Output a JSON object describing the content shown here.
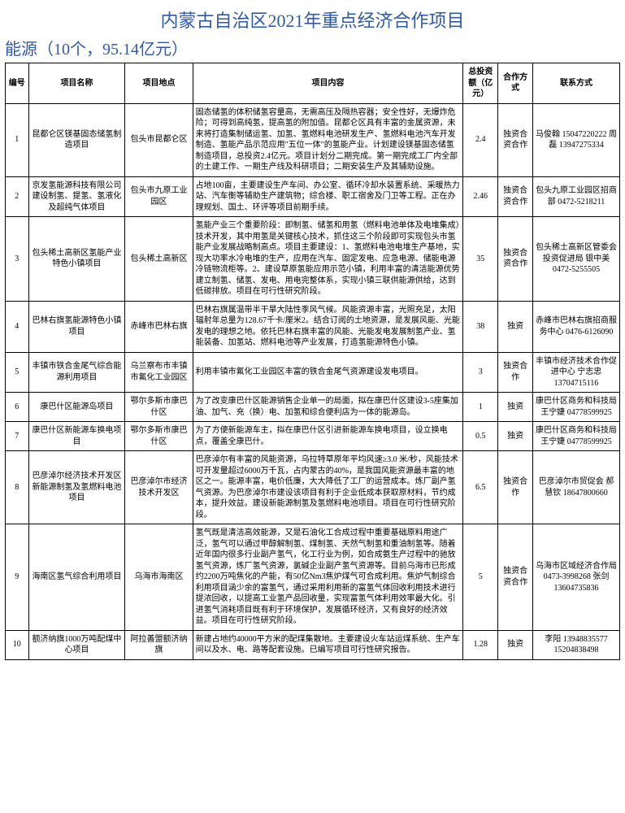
{
  "title": "内蒙古自治区2021年重点经济合作项目",
  "subtitle": "能源（10个，95.14亿元）",
  "headers": {
    "h0": "编号",
    "h1": "项目名称",
    "h2": "项目地点",
    "h3": "项目内容",
    "h4": "总投资额（亿元）",
    "h5": "合作方式",
    "h6": "联系方式"
  },
  "rows": [
    {
      "id": "1",
      "name": "昆都仑区镁基固态储氢制造项目",
      "loc": "包头市昆都仑区",
      "content": "固态储氢的体积储氢容量高，无需高压及隔热容器；安全性好，无爆炸危险；可得到高纯氢，提高氢的附加值。昆都仑区具有丰富的金属资源，未来将打造集制储运氢、加氢、氢燃料电池研发生产、氢燃料电池汽车开发制造、氢能产品示范应用\"五位一体\"的氢能产业。计划建设镁基固态储氢制造项目，总投资2.4亿元。项目计划分二期完成。第一期完成工厂内全部的土建工作、一期生产线及科研项目；二期安装生产及其辅助设施。",
      "inv": "2.4",
      "coop": "独资合资合作",
      "contact": "马俊翰 15047220222 周磊 13947275334"
    },
    {
      "id": "2",
      "name": "京发氢能源科技有限公司建设制氢、提氢、氢液化及超纯气体项目",
      "loc": "包头市九原工业园区",
      "content": "占地100亩，主要建设生产车间、办公室、循环冷却水装置系统、采暖热力站、汽车衡等辅助生产建筑物；综合楼、职工宿舍及门卫等工程。正在办理规划、国土、环评等项目前期手续。",
      "inv": "2.46",
      "coop": "独资合资合作",
      "contact": "包头九原工业园区招商部 0472-5218211"
    },
    {
      "id": "3",
      "name": "包头稀土高新区氢能产业特色小镇项目",
      "loc": "包头稀土高新区",
      "content": "氢能产业三个重要阶段：即制氢、储氢和用氢（燃料电池单体及电堆集成）技术开发，其中用氢是关键核心技术，抓住这三个阶段即可实现包头市氢能产业发展战略制高点。项目主要建设：1、氢燃料电池电堆生产基地，实现大功率水冷电堆的生产，应用在汽车、固定发电、应急电源、储能电源冷链物流柜等。2、建设草原氢能应用示范小镇，利用丰富的清洁能源优势建立制氢、储氢、发电、用电完整体系，实现小镇三联供能源供给，达到低碳排放。项目在可行性研究阶段。",
      "inv": "35",
      "coop": "独资合资合作",
      "contact": "包头稀土高新区管委会投资促进局 银中美 0472-5255505"
    },
    {
      "id": "4",
      "name": "巴林右旗氢能源特色小镇项目",
      "loc": "赤峰市巴林右旗",
      "content": "巴林右旗属温带半干旱大陆性季风气候。风能资源丰富，光照充足，太阳辐射年总量为128.67千卡/厘米2。结合订阅的土地资源，是发展风能、光能发电的理想之地。依托巴林右旗丰富的风能、光能发电发展制氢产业、氢能装备、加氢站、燃料电池等产业发展，打造氢能源特色小镇。",
      "inv": "38",
      "coop": "独资",
      "contact": "赤峰市巴林右旗招商服务中心 0476-6126090"
    },
    {
      "id": "5",
      "name": "丰镇市铁合金尾气综合能源利用项目",
      "loc": "乌兰察布市丰镇市氟化工业园区",
      "content": "利用丰镇市氟化工业园区丰富的铁合金尾气资源建设发电项目。",
      "inv": "3",
      "coop": "独资合作",
      "contact": "丰镇市经济技术合作促进中心 宁志忠 13704715116"
    },
    {
      "id": "6",
      "name": "康巴什区能源岛项目",
      "loc": "鄂尔多斯市康巴什区",
      "content": "为了改变康巴什区能源销售企业单一的局面，拟在康巴什区建设3-5座集加油、加气、充（换）电、加氢和综合便利店为一体的能源岛。",
      "inv": "1",
      "coop": "独资",
      "contact": "康巴什区商务和科技局 王宁婕 04778599925"
    },
    {
      "id": "7",
      "name": "康巴什区新能源车换电项目",
      "loc": "鄂尔多斯市康巴什区",
      "content": "为了方便新能源车主，拟在康巴什区引进新能源车换电项目，设立换电点，覆盖全康巴什。",
      "inv": "0.5",
      "coop": "独资",
      "contact": "康巴什区商务和科技局 王宁婕 04778599925"
    },
    {
      "id": "8",
      "name": "巴彦淖尔经济技术开发区新能源制氢及氢燃料电池项目",
      "loc": "巴彦淖尔市经济技术开发区",
      "content": "巴彦淖尔有丰富的风能资源，乌拉特草原年平均风速≥3.0 米/秒，风能技术可开发量超过6000万千瓦，占内蒙古的40%，是我国风能资源最丰富的地区之一。能源丰富，电价低廉，大大降低了工厂的运营成本。炼厂副产氢气资源。为巴彦淖尔市建设该项目有利于企业低成本获取原材料，节约成本，提升效益。建设新能源制氢及氢燃料电池项目。项目在可行性研究阶段。",
      "inv": "6.5",
      "coop": "独资合作",
      "contact": "巴彦淖尔市贸促会 郝慧钦 18647800660"
    },
    {
      "id": "9",
      "name": "海南区氢气综合利用项目",
      "loc": "乌海市海南区",
      "content": "氢气既是清洁高效能源，又是石油化工合成过程中重要基础原料用途广泛，氢气可以通过甲醇解制氢、煤制氢、天然气制氢和重油制氢等。随着近年国内很多行业副产氢气，化工行业为例，如合成氨生产过程中的驰放氢气资源，炼厂氢气资源，氯碱企业副产氢气资源等。目前乌海市已形成约2200万吨焦化的产能，有50亿Nm3焦炉煤气可合成利用。焦炉气制综合利用项目涵少余的富氢气，通过采用利用新的富氢气体回收利用技术进行提浓回收，以提高工业氢产品回收量，实现富氢气体利用效率最大化。引进氢气消耗项目既有利于环境保护，发展循环经济，又有良好的经济效益。项目在可行性研究阶段。",
      "inv": "5",
      "coop": "独资合资合作",
      "contact": "乌海市区域经济合作局 0473-3998268 张剑 13604735836"
    },
    {
      "id": "10",
      "name": "额济纳旗1000万吨配煤中心项目",
      "loc": "阿拉善盟额济纳旗",
      "content": "新建占地约40000平方米的配煤集散地。主要建设火车站运煤系统、生产车间以及水、电、路等配套设施。已编写项目可行性研究报告。",
      "inv": "1.28",
      "coop": "独资",
      "contact": "李阳 13948835577 15204838498"
    }
  ]
}
